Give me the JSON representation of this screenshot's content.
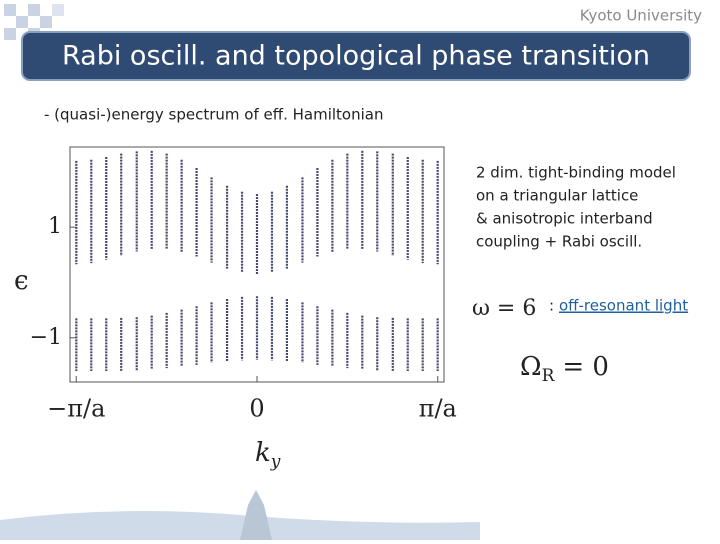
{
  "header": "Kyoto University",
  "title": "Rabi oscill. and topological phase transition",
  "bullet": "- (quasi-)energy spectrum of eff. Hamiltonian",
  "description": [
    "2 dim. tight-binding model",
    "on a triangular lattice",
    "& anisotropic interband",
    "coupling + Rabi oscill."
  ],
  "frequency": {
    "formula": "ω = 6",
    "separator": ":",
    "link": "off-resonant light"
  },
  "rabi": {
    "symbol": "Ω",
    "subscript": "R",
    "rest": "= 0"
  },
  "chart_data": {
    "type": "bands",
    "x_label": "k",
    "x_label_subscript": "y",
    "y_label": "ϵ",
    "x": [
      -3.14,
      -2.88,
      -2.62,
      -2.36,
      -2.09,
      -1.83,
      -1.57,
      -1.31,
      -1.05,
      -0.79,
      -0.52,
      -0.26,
      0,
      0.26,
      0.52,
      0.79,
      1.05,
      1.31,
      1.57,
      1.83,
      2.09,
      2.36,
      2.62,
      2.88,
      3.14
    ],
    "series": [
      {
        "color": "#474a6e",
        "high": [
          2.2,
          2.22,
          2.27,
          2.33,
          2.37,
          2.38,
          2.33,
          2.22,
          2.07,
          1.9,
          1.75,
          1.64,
          1.6,
          1.64,
          1.75,
          1.9,
          2.07,
          2.22,
          2.33,
          2.38,
          2.37,
          2.33,
          2.27,
          2.22,
          2.2
        ],
        "low": [
          0.33,
          0.35,
          0.41,
          0.48,
          0.56,
          0.6,
          0.6,
          0.55,
          0.47,
          0.36,
          0.25,
          0.18,
          0.15,
          0.18,
          0.25,
          0.36,
          0.47,
          0.55,
          0.6,
          0.6,
          0.56,
          0.48,
          0.41,
          0.35,
          0.33
        ]
      },
      {
        "color": "#474a6e",
        "high": [
          -0.65,
          -0.65,
          -0.65,
          -0.64,
          -0.63,
          -0.6,
          -0.55,
          -0.49,
          -0.43,
          -0.36,
          -0.3,
          -0.26,
          -0.25,
          -0.26,
          -0.3,
          -0.36,
          -0.43,
          -0.49,
          -0.55,
          -0.6,
          -0.63,
          -0.64,
          -0.65,
          -0.65,
          -0.65
        ],
        "low": [
          -1.6,
          -1.6,
          -1.6,
          -1.6,
          -1.59,
          -1.57,
          -1.55,
          -1.52,
          -1.49,
          -1.45,
          -1.43,
          -1.41,
          -1.4,
          -1.41,
          -1.43,
          -1.45,
          -1.49,
          -1.52,
          -1.55,
          -1.57,
          -1.59,
          -1.6,
          -1.6,
          -1.6,
          -1.6
        ]
      }
    ],
    "xlim": [
      -3.25,
      3.25
    ],
    "ylim": [
      -1.8,
      2.45
    ],
    "xticks": [
      {
        "value": -3.14159,
        "label": "−π/a"
      },
      0,
      {
        "value": 3.14159,
        "label": "π/a"
      }
    ],
    "yticks": [
      {
        "value": -1,
        "label": "−1"
      },
      1
    ]
  }
}
